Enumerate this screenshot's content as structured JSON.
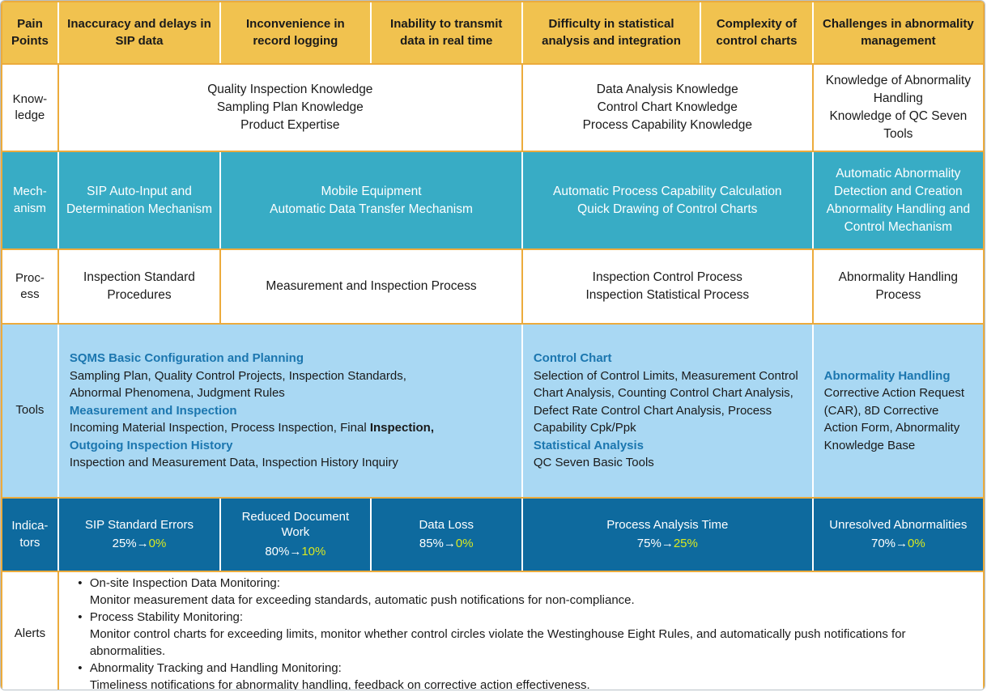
{
  "colors": {
    "header-bg": "#F1C24F",
    "teal-bg": "#38ACC5",
    "lightblue-bg": "#A9D8F3",
    "darkblue-bg": "#0E6A9E",
    "gold": "#ECAB3C",
    "heading-blue": "#1B76AF",
    "yellow": "#D9E821",
    "text": "#1A1A1A",
    "frame-outer": "#B7C0C6",
    "page-strip": "#CDD8DF"
  },
  "header": {
    "label": "Pain\nPoints",
    "columns": [
      "Inaccuracy and delays in SIP data",
      "Inconvenience in record logging",
      "Inability to transmit data in real time",
      "Difficulty in statistical analysis and integration",
      "Complexity of control charts",
      "Challenges in abnormality management"
    ]
  },
  "knowledge": {
    "label": "Know-\nledge",
    "quality": "Quality Inspection Knowledge\nSampling Plan Knowledge\nProduct Expertise",
    "analysis": "Data Analysis Knowledge\nControl Chart Knowledge\nProcess Capability Knowledge",
    "abnormality": "Knowledge of Abnormality Handling\nKnowledge of QC Seven Tools"
  },
  "mechanism": {
    "label": "Mech-\nanism",
    "sip": "SIP Auto-Input and Determination Mechanism",
    "mobile": "Mobile Equipment\nAutomatic Data Transfer Mechanism",
    "capability": "Automatic Process Capability Calculation\nQuick Drawing of Control Charts",
    "abnormality": "Automatic Abnormality Detection and Creation\nAbnormality Handling and Control Mechanism"
  },
  "process": {
    "label": "Proc-\ness",
    "standard": "Inspection Standard Procedures",
    "measurement": "Measurement and Inspection Process",
    "control": "Inspection Control Process\nInspection Statistical Process",
    "abnormality": "Abnormality Handling Process"
  },
  "tools": {
    "label": "Tools",
    "main": {
      "h1": "SQMS Basic Configuration and Planning",
      "p1": "Sampling Plan, Quality Control Projects, Inspection Standards,\nAbnormal Phenomena, Judgment Rules",
      "h2": "Measurement and Inspection",
      "p2_normal": "Incoming Material Inspection, Process Inspection, Final ",
      "p2_bold": "Inspection,",
      "h3": "Outgoing Inspection History",
      "p3": "Inspection and Measurement Data, Inspection History Inquiry"
    },
    "stat": {
      "h1": "Control Chart",
      "p1": "Selection of Control Limits, Measurement Control Chart Analysis, Counting Control Chart Analysis, Defect Rate Control Chart Analysis, Process Capability Cpk/Ppk",
      "h2": "Statistical Analysis",
      "p2": "QC Seven Basic Tools"
    },
    "abn": {
      "h1": "Abnormality Handling",
      "p1": "Corrective Action Request (CAR), 8D Corrective Action Form, Abnormality Knowledge Base"
    }
  },
  "indicators": {
    "label": "Indica-\ntors",
    "arrow": "→",
    "cells": [
      {
        "title": "SIP Standard Errors",
        "from": "25%",
        "to": "0%"
      },
      {
        "title": "Reduced Document Work",
        "from": "80%",
        "to": "10%"
      },
      {
        "title": "Data Loss",
        "from": "85%",
        "to": "0%"
      },
      {
        "title": "Process Analysis Time",
        "from": "75%",
        "to": "25%"
      },
      {
        "title": "Unresolved Abnormalities",
        "from": "70%",
        "to": "0%"
      }
    ]
  },
  "alerts": {
    "label": "Alerts",
    "bullet": "•",
    "items": [
      {
        "title": "On-site Inspection Data Monitoring:",
        "desc": "Monitor measurement data for exceeding standards, automatic push notifications for non-compliance."
      },
      {
        "title": "Process Stability Monitoring:",
        "desc": "Monitor control charts for exceeding limits, monitor whether control circles violate the Westinghouse Eight Rules, and automatically push notifications for abnormalities."
      },
      {
        "title": "Abnormality Tracking and Handling Monitoring:",
        "desc": "Timeliness notifications for abnormality handling, feedback on corrective action effectiveness."
      }
    ]
  }
}
